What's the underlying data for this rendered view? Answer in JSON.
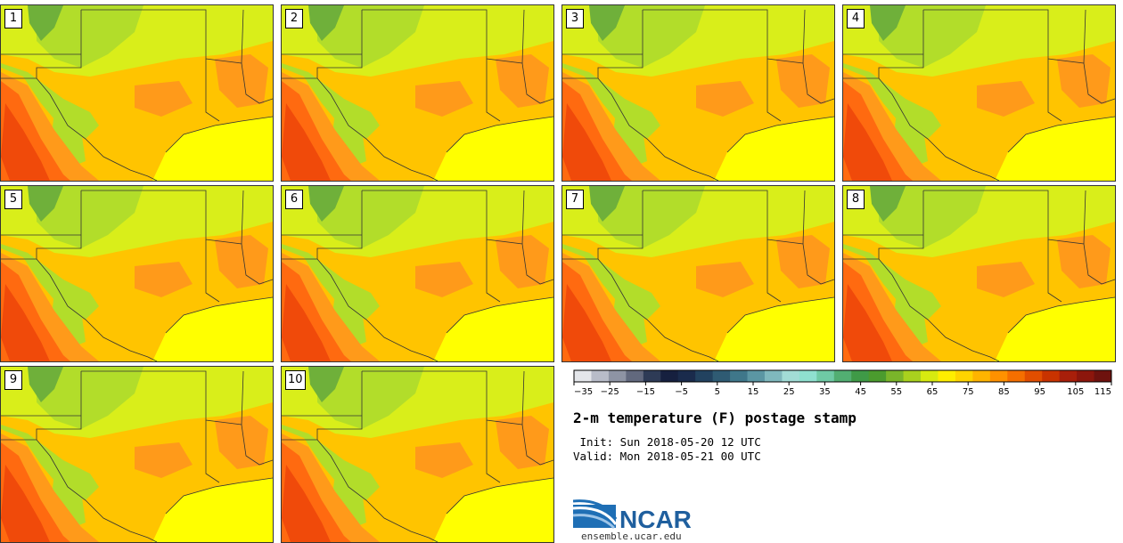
{
  "panels": [
    {
      "label": "1"
    },
    {
      "label": "2"
    },
    {
      "label": "3"
    },
    {
      "label": "4"
    },
    {
      "label": "5"
    },
    {
      "label": "6"
    },
    {
      "label": "7"
    },
    {
      "label": "8"
    },
    {
      "label": "9"
    },
    {
      "label": "10"
    }
  ],
  "colorbar": {
    "tick_labels": [
      "−35",
      "−25",
      "−15",
      "−5",
      "5",
      "15",
      "25",
      "35",
      "45",
      "55",
      "65",
      "75",
      "85",
      "95",
      "105",
      "115"
    ],
    "colors": [
      "#e4e6ea",
      "#b8bcc8",
      "#8e94a4",
      "#62697e",
      "#2e3b56",
      "#16203f",
      "#1a2b4c",
      "#22425f",
      "#2f5b73",
      "#3f778a",
      "#5b96a3",
      "#7fb8bd",
      "#a2dcd6",
      "#8fe0cf",
      "#6fcaa5",
      "#52ae72",
      "#3f9a47",
      "#4b9b2e",
      "#7ab52a",
      "#a9d11e",
      "#d7ea10",
      "#ffee00",
      "#ffd400",
      "#ffb400",
      "#ff9100",
      "#f56f00",
      "#e24e00",
      "#c93300",
      "#a81f0a",
      "#8c160c",
      "#6e120e"
    ]
  },
  "title": "2-m temperature (F) postage stamp",
  "init_text": " Init: Sun 2018-05-20 12 UTC",
  "valid_text": "Valid: Mon 2018-05-21 00 UTC",
  "logo_text": "NCAR",
  "url": "ensemble.ucar.edu",
  "map_colors": {
    "gulf": "#ffff00",
    "base": "#ffc400",
    "orange": "#ff9a1a",
    "hot": "#ff6a10",
    "dark": "#f04a0a",
    "green_light": "#d9ee1a",
    "green_mid": "#b2dd2a",
    "green_dark": "#6fb03a",
    "boundary": "#333333"
  }
}
